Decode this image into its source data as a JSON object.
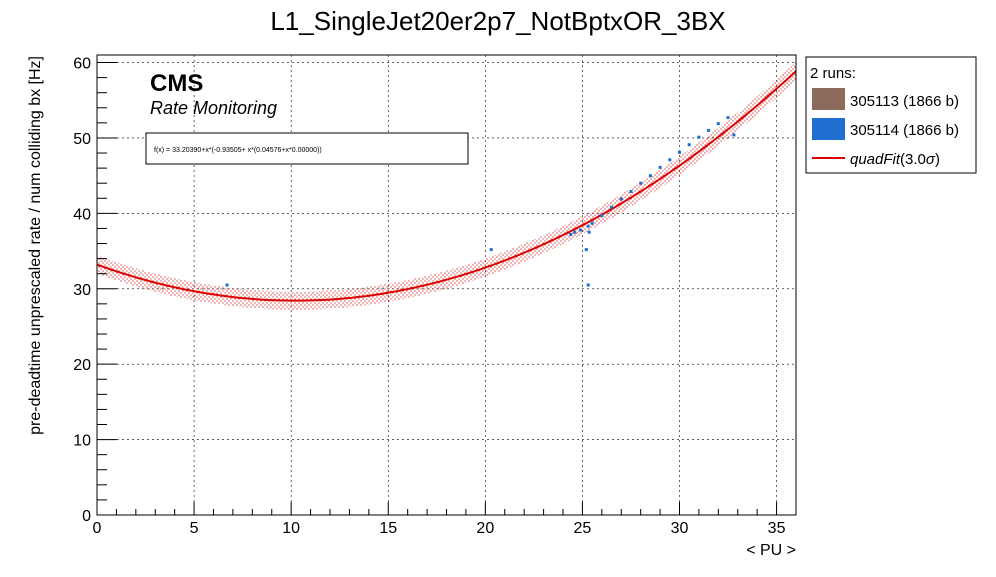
{
  "chart_data": {
    "type": "scatter",
    "title": "L1_SingleJet20er2p7_NotBptxOR_3BX",
    "xlabel": "< PU >",
    "ylabel": "pre-deadtime unprescaled rate / num colliding bx [Hz]",
    "xlim": [
      0,
      36
    ],
    "ylim": [
      0,
      61
    ],
    "xticks": [
      0,
      5,
      10,
      15,
      20,
      25,
      30,
      35
    ],
    "yticks": [
      0,
      10,
      20,
      30,
      40,
      50,
      60
    ],
    "grid": true,
    "legend_position": "top-right",
    "legend_header": "2 runs:",
    "cms_label": "CMS",
    "cms_sublabel": "Rate Monitoring",
    "fit_formula": "f(x) = 33.20390+x*(-0.93505+ x*(0.04576+x*0.00000))",
    "fit": {
      "name": "quadFit",
      "sigma_label": "(3.0",
      "sigma_symbol": "σ",
      "sigma_close": ")",
      "coefficients": [
        33.2039,
        -0.93505,
        0.04576
      ],
      "band_halfwidth": 1.2,
      "color": "#dd0000"
    },
    "series": [
      {
        "name": "305113 (1866 b)",
        "color": "#8c6a5c",
        "x": [],
        "y": []
      },
      {
        "name": "305114 (1866 b)",
        "color": "#1e6fcf",
        "x": [
          6.7,
          20.3,
          24.4,
          24.6,
          24.9,
          25.2,
          25.3,
          25.35,
          25.3,
          25.5,
          26.0,
          26.5,
          27.0,
          27.5,
          28.0,
          28.5,
          29.0,
          29.5,
          30.0,
          30.5,
          31.0,
          31.5,
          32.0,
          32.5,
          32.8
        ],
        "y": [
          30.5,
          35.2,
          37.2,
          37.5,
          37.8,
          35.2,
          30.5,
          37.5,
          38.3,
          38.7,
          39.7,
          40.8,
          41.9,
          42.9,
          44.0,
          45.0,
          46.1,
          47.1,
          48.1,
          49.1,
          50.1,
          51.0,
          51.9,
          52.7,
          50.4
        ]
      }
    ]
  }
}
